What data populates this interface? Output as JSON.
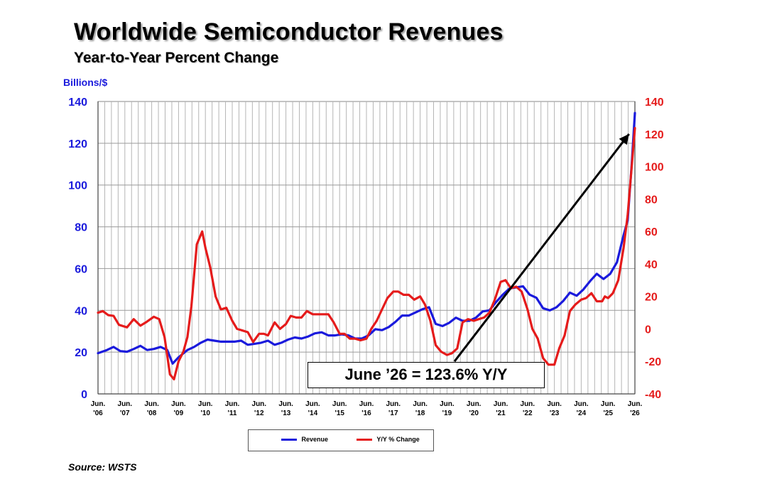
{
  "header": {
    "title": "Worldwide Semiconductor Revenues",
    "subtitle": "Year-to-Year Percent Change"
  },
  "source": "Source: WSTS",
  "chart_data": {
    "type": "line",
    "left_axis": {
      "label": "Billions/$",
      "min": 0,
      "max": 140,
      "ticks": [
        0,
        20,
        40,
        60,
        80,
        100,
        120,
        140
      ],
      "color": "#1a1adc"
    },
    "right_axis": {
      "min": -40,
      "max": 140,
      "ticks": [
        -40,
        -20,
        0,
        20,
        40,
        60,
        80,
        100,
        120,
        140
      ],
      "color": "#e51b1b"
    },
    "x_ticks": [
      {
        "line1": "Jun.",
        "line2": "'06"
      },
      {
        "line1": "Jun.",
        "line2": "'07"
      },
      {
        "line1": "Jun.",
        "line2": "'08"
      },
      {
        "line1": "Jun.",
        "line2": "'09"
      },
      {
        "line1": "Jun.",
        "line2": "'10"
      },
      {
        "line1": "Jun.",
        "line2": "'11"
      },
      {
        "line1": "Jun.",
        "line2": "'12"
      },
      {
        "line1": "Jun.",
        "line2": "'13"
      },
      {
        "line1": "Jun.",
        "line2": "'14"
      },
      {
        "line1": "Jun.",
        "line2": "'15"
      },
      {
        "line1": "Jun.",
        "line2": "'16"
      },
      {
        "line1": "Jun.",
        "line2": "'17"
      },
      {
        "line1": "Jun.",
        "line2": "'18"
      },
      {
        "line1": "Jun.",
        "line2": "'19"
      },
      {
        "line1": "Jun.",
        "line2": "'20"
      },
      {
        "line1": "Jun.",
        "line2": "'21"
      },
      {
        "line1": "Jun.",
        "line2": "'22"
      },
      {
        "line1": "Jun.",
        "line2": "'23"
      },
      {
        "line1": "Jun.",
        "line2": "'24"
      },
      {
        "line1": "Jun.",
        "line2": "'25"
      },
      {
        "line1": "Jun.",
        "line2": "'26"
      }
    ],
    "x_range": [
      2006.42,
      2026.42
    ],
    "grid": "vertical quarterly, horizontal at left-axis ticks",
    "series": [
      {
        "name": "Revenue",
        "axis": "left",
        "color": "#1a1adc",
        "points": [
          [
            2006.42,
            19.5
          ],
          [
            2006.75,
            21
          ],
          [
            2007.0,
            22.5
          ],
          [
            2007.25,
            20.5
          ],
          [
            2007.5,
            20.2
          ],
          [
            2007.75,
            21.5
          ],
          [
            2008.0,
            23
          ],
          [
            2008.25,
            21
          ],
          [
            2008.5,
            21.5
          ],
          [
            2008.75,
            22.5
          ],
          [
            2009.0,
            21
          ],
          [
            2009.2,
            14.5
          ],
          [
            2009.42,
            17.5
          ],
          [
            2009.75,
            21
          ],
          [
            2010.0,
            22.5
          ],
          [
            2010.25,
            24.5
          ],
          [
            2010.5,
            26
          ],
          [
            2010.75,
            25.5
          ],
          [
            2011.0,
            25
          ],
          [
            2011.25,
            25
          ],
          [
            2011.5,
            25
          ],
          [
            2011.75,
            25.5
          ],
          [
            2012.0,
            23.5
          ],
          [
            2012.25,
            24
          ],
          [
            2012.5,
            24.5
          ],
          [
            2012.75,
            25.5
          ],
          [
            2013.0,
            23.5
          ],
          [
            2013.25,
            24.5
          ],
          [
            2013.5,
            26
          ],
          [
            2013.75,
            27
          ],
          [
            2014.0,
            26.5
          ],
          [
            2014.25,
            27.5
          ],
          [
            2014.5,
            29
          ],
          [
            2014.75,
            29.5
          ],
          [
            2015.0,
            28
          ],
          [
            2015.25,
            28
          ],
          [
            2015.5,
            28.5
          ],
          [
            2015.75,
            28
          ],
          [
            2016.0,
            26.5
          ],
          [
            2016.25,
            26.5
          ],
          [
            2016.5,
            28
          ],
          [
            2016.75,
            31
          ],
          [
            2017.0,
            30.5
          ],
          [
            2017.25,
            32
          ],
          [
            2017.5,
            34.5
          ],
          [
            2017.75,
            37.5
          ],
          [
            2018.0,
            37.5
          ],
          [
            2018.25,
            39
          ],
          [
            2018.5,
            40.5
          ],
          [
            2018.75,
            41.5
          ],
          [
            2019.0,
            33.5
          ],
          [
            2019.25,
            32.5
          ],
          [
            2019.5,
            34
          ],
          [
            2019.75,
            36.5
          ],
          [
            2020.0,
            35
          ],
          [
            2020.25,
            35
          ],
          [
            2020.5,
            36.5
          ],
          [
            2020.75,
            39.5
          ],
          [
            2021.0,
            40
          ],
          [
            2021.25,
            44
          ],
          [
            2021.5,
            47.5
          ],
          [
            2021.75,
            50.5
          ],
          [
            2022.0,
            51
          ],
          [
            2022.25,
            51.5
          ],
          [
            2022.5,
            47.5
          ],
          [
            2022.75,
            46
          ],
          [
            2023.0,
            41
          ],
          [
            2023.25,
            40
          ],
          [
            2023.5,
            41.5
          ],
          [
            2023.75,
            44.5
          ],
          [
            2024.0,
            48.5
          ],
          [
            2024.25,
            47
          ],
          [
            2024.5,
            50
          ],
          [
            2024.75,
            54
          ],
          [
            2025.0,
            57.5
          ],
          [
            2025.25,
            55
          ],
          [
            2025.5,
            57.5
          ],
          [
            2025.75,
            63
          ],
          [
            2026.0,
            76
          ],
          [
            2026.15,
            83
          ],
          [
            2026.3,
            110
          ],
          [
            2026.42,
            134.5
          ]
        ]
      },
      {
        "name": "Y/Y % Change",
        "axis": "right",
        "color": "#e51b1b",
        "points": [
          [
            2006.42,
            10
          ],
          [
            2006.6,
            11
          ],
          [
            2006.8,
            8.5
          ],
          [
            2007.0,
            8
          ],
          [
            2007.2,
            2.5
          ],
          [
            2007.5,
            1
          ],
          [
            2007.75,
            6
          ],
          [
            2008.0,
            2
          ],
          [
            2008.2,
            4
          ],
          [
            2008.5,
            7.5
          ],
          [
            2008.7,
            6
          ],
          [
            2008.9,
            -5
          ],
          [
            2009.1,
            -28
          ],
          [
            2009.25,
            -31
          ],
          [
            2009.42,
            -20
          ],
          [
            2009.6,
            -14
          ],
          [
            2009.75,
            -5
          ],
          [
            2009.9,
            14
          ],
          [
            2010.1,
            52
          ],
          [
            2010.3,
            60
          ],
          [
            2010.42,
            50
          ],
          [
            2010.6,
            38
          ],
          [
            2010.8,
            20
          ],
          [
            2011.0,
            12
          ],
          [
            2011.2,
            13
          ],
          [
            2011.42,
            5
          ],
          [
            2011.6,
            0
          ],
          [
            2011.8,
            -1
          ],
          [
            2012.0,
            -2
          ],
          [
            2012.2,
            -8
          ],
          [
            2012.42,
            -3
          ],
          [
            2012.6,
            -3
          ],
          [
            2012.75,
            -4
          ],
          [
            2013.0,
            4
          ],
          [
            2013.2,
            0
          ],
          [
            2013.42,
            3
          ],
          [
            2013.6,
            8
          ],
          [
            2013.8,
            7
          ],
          [
            2014.0,
            7
          ],
          [
            2014.2,
            11
          ],
          [
            2014.42,
            9
          ],
          [
            2014.6,
            9
          ],
          [
            2014.8,
            9
          ],
          [
            2015.0,
            9
          ],
          [
            2015.2,
            4
          ],
          [
            2015.42,
            -3
          ],
          [
            2015.6,
            -3
          ],
          [
            2015.8,
            -6
          ],
          [
            2016.0,
            -6
          ],
          [
            2016.2,
            -7
          ],
          [
            2016.42,
            -6
          ],
          [
            2016.6,
            0
          ],
          [
            2016.8,
            5
          ],
          [
            2017.0,
            12
          ],
          [
            2017.2,
            19
          ],
          [
            2017.42,
            23
          ],
          [
            2017.6,
            23
          ],
          [
            2017.8,
            21
          ],
          [
            2018.0,
            21
          ],
          [
            2018.2,
            18
          ],
          [
            2018.42,
            20
          ],
          [
            2018.6,
            15
          ],
          [
            2018.8,
            5
          ],
          [
            2019.0,
            -10
          ],
          [
            2019.2,
            -14
          ],
          [
            2019.42,
            -16
          ],
          [
            2019.6,
            -15
          ],
          [
            2019.8,
            -12
          ],
          [
            2020.0,
            4
          ],
          [
            2020.2,
            6
          ],
          [
            2020.42,
            5
          ],
          [
            2020.6,
            6
          ],
          [
            2020.8,
            7
          ],
          [
            2021.0,
            10
          ],
          [
            2021.2,
            18
          ],
          [
            2021.42,
            29
          ],
          [
            2021.6,
            30
          ],
          [
            2021.8,
            25
          ],
          [
            2022.0,
            26
          ],
          [
            2022.2,
            23
          ],
          [
            2022.42,
            12
          ],
          [
            2022.6,
            0
          ],
          [
            2022.8,
            -6
          ],
          [
            2023.0,
            -18
          ],
          [
            2023.2,
            -22
          ],
          [
            2023.42,
            -22
          ],
          [
            2023.6,
            -12
          ],
          [
            2023.8,
            -4
          ],
          [
            2024.0,
            11
          ],
          [
            2024.2,
            15
          ],
          [
            2024.42,
            18
          ],
          [
            2024.6,
            19
          ],
          [
            2024.8,
            22
          ],
          [
            2025.0,
            17
          ],
          [
            2025.2,
            17
          ],
          [
            2025.3,
            20
          ],
          [
            2025.42,
            19
          ],
          [
            2025.6,
            22
          ],
          [
            2025.8,
            30
          ],
          [
            2026.0,
            50
          ],
          [
            2026.15,
            70
          ],
          [
            2026.3,
            100
          ],
          [
            2026.42,
            123.6
          ]
        ]
      }
    ],
    "annotation": {
      "text": "June ’26 = 123.6% Y/Y",
      "arrow_from": [
        2019.7,
        -20
      ],
      "arrow_to": [
        2026.2,
        120
      ],
      "arrow_axis": "right"
    },
    "legend": {
      "placement": "bottom-center",
      "entries": [
        "Revenue",
        "Y/Y % Change"
      ]
    }
  }
}
